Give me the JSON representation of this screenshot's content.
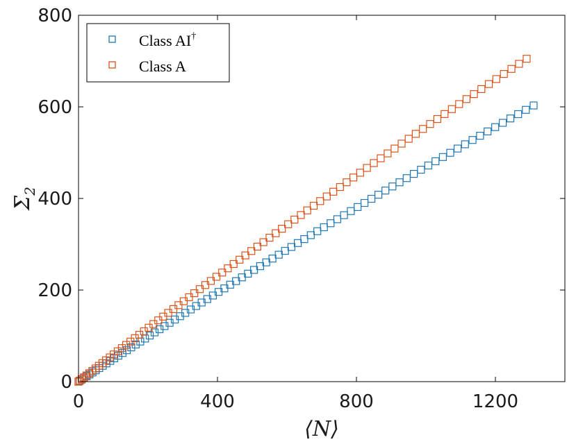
{
  "chart_data": {
    "type": "scatter",
    "xlabel": "⟨N⟩",
    "ylabel_main": "Σ",
    "ylabel_sub": "2",
    "xlim": [
      0,
      1400
    ],
    "ylim": [
      0,
      800
    ],
    "xticks": [
      0,
      400,
      800,
      1200
    ],
    "yticks": [
      0,
      200,
      400,
      600,
      800
    ],
    "grid": false,
    "legend_position": "top-left",
    "series": [
      {
        "name_main": "Class  AI",
        "name_sup": "†",
        "color": "#1f77b4",
        "marker": "square-open",
        "x_min": 0,
        "x_max": 1310,
        "y_min": 0,
        "y_max": 603,
        "points": 80
      },
      {
        "name_main": "Class  A",
        "name_sup": "",
        "color": "#d95319",
        "marker": "square-open",
        "x_min": 0,
        "x_max": 1290,
        "y_min": 0,
        "y_max": 705,
        "points": 80
      }
    ]
  }
}
